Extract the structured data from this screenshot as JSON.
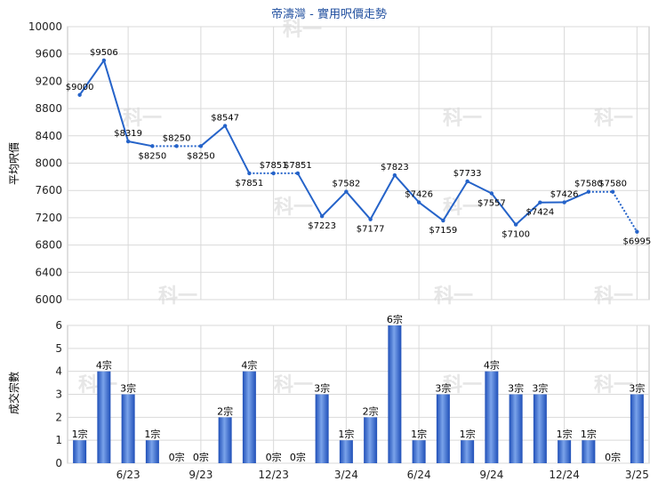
{
  "chart_data": [
    {
      "type": "line",
      "title": "帝濤灣 - 實用呎價走勢",
      "ylabel": "平均呎價",
      "ylim": [
        6000,
        10000
      ],
      "yticks": [
        6000,
        6400,
        6800,
        7200,
        7600,
        8000,
        8400,
        8800,
        9200,
        9600,
        10000
      ],
      "grid": true,
      "series": [
        {
          "values": [
            9000,
            9506,
            8319,
            8250,
            8250,
            8250,
            8547,
            7851,
            7851,
            7851,
            7223,
            7582,
            7177,
            7823,
            7426,
            7159,
            7733,
            7557,
            7100,
            7424,
            7426,
            7580,
            7580,
            6995
          ],
          "labels": [
            "$9000",
            "$9506",
            "$8319",
            "$8250",
            "$8250",
            "$8250",
            "$8547",
            "$7851",
            "$7851",
            "$7851",
            "$7223",
            "$7582",
            "$7177",
            "$7823",
            "$7426",
            "$7159",
            "$7733",
            "$7557",
            "$7100",
            "$7424",
            "$7426",
            "$7580",
            "$7580",
            "$6995"
          ],
          "carried_forward": [
            false,
            false,
            false,
            false,
            true,
            false,
            false,
            false,
            true,
            false,
            false,
            false,
            false,
            false,
            false,
            false,
            false,
            false,
            false,
            false,
            false,
            false,
            true,
            false
          ]
        }
      ]
    },
    {
      "type": "bar",
      "ylabel": "成交宗數",
      "ylim": [
        0,
        6
      ],
      "yticks": [
        0,
        1,
        2,
        3,
        4,
        5,
        6
      ],
      "grid": true,
      "series": [
        {
          "values": [
            1,
            4,
            3,
            1,
            0,
            0,
            2,
            4,
            0,
            0,
            3,
            1,
            2,
            6,
            1,
            3,
            1,
            4,
            3,
            3,
            1,
            1,
            0,
            3
          ],
          "labels": [
            "1宗",
            "4宗",
            "3宗",
            "1宗",
            "0宗",
            "0宗",
            "2宗",
            "4宗",
            "0宗",
            "0宗",
            "3宗",
            "1宗",
            "2宗",
            "6宗",
            "1宗",
            "3宗",
            "1宗",
            "4宗",
            "3宗",
            "3宗",
            "1宗",
            "1宗",
            "0宗",
            "3宗"
          ]
        }
      ],
      "x_tick_labels": [
        "6/23",
        "9/23",
        "12/23",
        "3/24",
        "6/24",
        "9/24",
        "12/24",
        "3/25"
      ]
    }
  ],
  "watermark": "科一",
  "colors": {
    "line": "#2563c9",
    "bar_dark": "#1f4fb8",
    "bar_light": "#6f9ae6",
    "grid": "#d9d9d9",
    "title": "#1f4e9e"
  }
}
